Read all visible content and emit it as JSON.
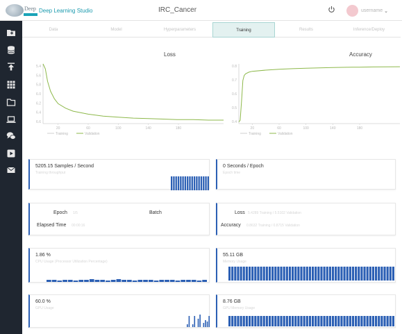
{
  "header": {
    "logo_text": "Deep",
    "app_title": "Deep Learning Studio",
    "project_title": "IRC_Cancer",
    "username": "username"
  },
  "tabs": [
    {
      "label": "Data",
      "active": false
    },
    {
      "label": "Model",
      "active": false
    },
    {
      "label": "Hyperparameters",
      "active": false
    },
    {
      "label": "Training",
      "active": true
    },
    {
      "label": "Results",
      "active": false
    },
    {
      "label": "Inference/Deploy",
      "active": false
    }
  ],
  "sidebar": {
    "items": [
      {
        "icon": "project-folder-icon"
      },
      {
        "icon": "database-icon"
      },
      {
        "icon": "upload-icon"
      },
      {
        "icon": "grid-icon"
      },
      {
        "icon": "folder-icon"
      },
      {
        "icon": "laptop-icon"
      },
      {
        "icon": "chat-icon"
      },
      {
        "icon": "video-icon"
      },
      {
        "icon": "mail-icon"
      }
    ]
  },
  "charts": {
    "loss": {
      "title": "Loss",
      "legend": [
        "Training",
        "Validation"
      ]
    },
    "accuracy": {
      "title": "Accuracy",
      "legend": [
        "Training",
        "Validation"
      ]
    }
  },
  "chart_data": [
    {
      "type": "line",
      "title": "Loss",
      "ylim": [
        5.35,
        6.55
      ],
      "xlim": [
        0,
        240
      ],
      "yticks": [
        "5.4",
        "5.6",
        "5.8",
        "6.0",
        "6.2",
        "6.4",
        "6.6"
      ],
      "xticks": [
        "20",
        "60",
        "100",
        "140",
        "180"
      ],
      "series": [
        {
          "name": "Training",
          "color": "#8db84a",
          "x": [
            0,
            3,
            6,
            10,
            15,
            20,
            30,
            40,
            60,
            80,
            100,
            120,
            140,
            160,
            180,
            200,
            220,
            240
          ],
          "y": [
            6.55,
            6.45,
            6.2,
            6.0,
            5.85,
            5.75,
            5.66,
            5.6,
            5.54,
            5.5,
            5.48,
            5.46,
            5.45,
            5.44,
            5.43,
            5.43,
            5.42,
            5.42
          ]
        }
      ]
    },
    {
      "type": "line",
      "title": "Accuracy",
      "ylim": [
        0.18,
        0.9
      ],
      "xlim": [
        0,
        240
      ],
      "yticks": [
        "0.8",
        "0.7",
        "0.6",
        "0.5",
        "0.4"
      ],
      "xticks": [
        "20",
        "60",
        "100",
        "140",
        "180"
      ],
      "series": [
        {
          "name": "Training",
          "color": "#8db84a",
          "x": [
            0,
            2,
            4,
            6,
            8,
            10,
            15,
            20,
            40,
            60,
            80,
            100,
            120,
            140,
            160,
            180,
            200,
            220,
            240
          ],
          "y": [
            0.2,
            0.22,
            0.45,
            0.7,
            0.76,
            0.78,
            0.8,
            0.81,
            0.825,
            0.835,
            0.842,
            0.848,
            0.852,
            0.856,
            0.859,
            0.861,
            0.863,
            0.865,
            0.866
          ]
        }
      ]
    }
  ],
  "cards": {
    "samples": {
      "title": "5205.15 Samples / Second",
      "sub": "Training throughput",
      "bars": [
        1,
        1,
        1,
        1,
        1,
        1,
        1,
        1,
        1,
        1,
        1,
        1,
        1,
        1,
        1,
        1,
        1
      ]
    },
    "epoch_time": {
      "title": "0 Seconds / Epoch",
      "sub": "Epoch time"
    },
    "epoch": {
      "epoch_label": "Epoch",
      "epoch_value": "1/5",
      "batch_label": "Batch",
      "batch_value": "",
      "elapsed_label": "Elapsed Time",
      "elapsed_value": "00:00:16"
    },
    "loss_acc": {
      "loss_label": "Loss",
      "loss_value": "5.4289 Training / 5.5102 Validation",
      "accuracy_label": "Accuracy",
      "accuracy_value": "0.8632 Training / 0.8715 Validation"
    },
    "cpu": {
      "title": "1.86 %",
      "sub": "CPU Usage (Processor Utilization Percentage)",
      "bars": [
        0.3,
        0.3,
        0.2,
        0.3,
        0.3,
        0.2,
        0.3,
        0.3,
        0.4,
        0.3,
        0.3,
        0.2,
        0.3,
        0.4,
        0.3,
        0.3,
        0.2,
        0.3,
        0.3,
        0.3,
        0.2,
        0.3,
        0.3,
        0.3,
        0.2,
        0.3,
        0.3,
        0.3,
        0.2,
        0.3
      ]
    },
    "memory": {
      "title": "55.11 GB",
      "sub": "Memory Usage",
      "bars_count": 58
    },
    "gpu": {
      "title": "60.0 %",
      "sub": "GPU Usage",
      "bars": [
        0.2,
        0.8,
        0,
        0.2,
        0.8,
        0,
        0.6,
        0.9,
        0,
        0.3,
        0.5,
        0.4,
        0.8
      ]
    },
    "gpu_mem": {
      "title": "8.76 GB",
      "sub": "GPU Memory Usage",
      "bars_count": 58
    }
  }
}
